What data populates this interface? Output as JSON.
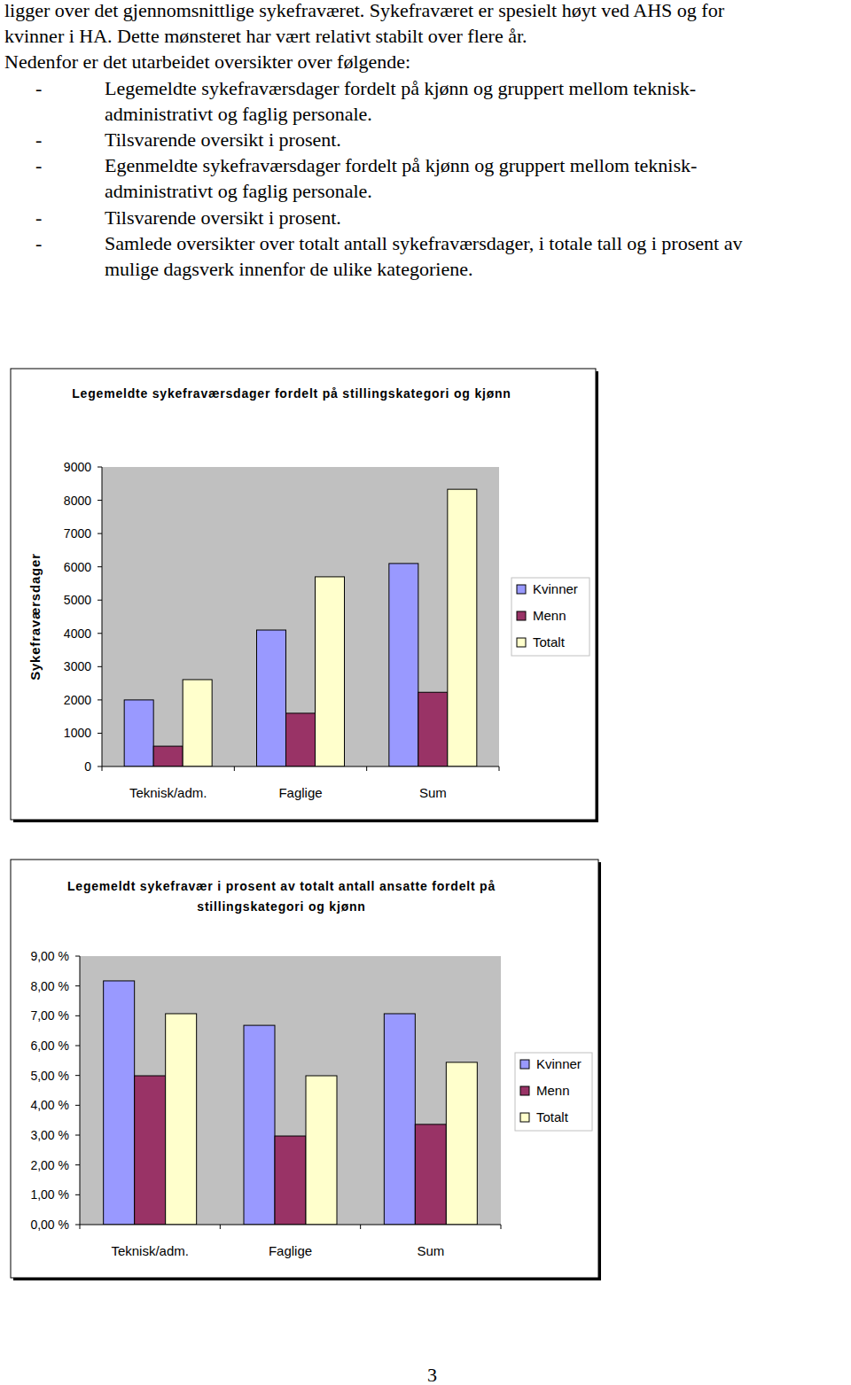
{
  "document": {
    "paragraphs": [
      [
        "ligger over det gjennomsnittlige sykefraværet. Sykefraværet er spesielt høyt ved AHS og for",
        "kvinner i HA. Dette mønsteret har vært relativt stabilt over flere år."
      ],
      [
        "Nedenfor er det utarbeidet oversikter over følgende:"
      ]
    ],
    "list_marker": "-",
    "list": [
      [
        "Legemeldte sykefraværsdager fordelt på kjønn og gruppert mellom teknisk-",
        "administrativt og faglig personale."
      ],
      [
        "Tilsvarende oversikt i prosent."
      ],
      [
        "Egenmeldte sykefraværsdager fordelt på kjønn og gruppert mellom teknisk-",
        "administrativt og faglig personale."
      ],
      [
        "Tilsvarende oversikt i prosent."
      ],
      [
        "Samlede oversikter over totalt antall sykefraværsdager, i totale tall og i prosent av",
        "mulige dagsverk innenfor de ulike kategoriene."
      ]
    ],
    "page_number": "3"
  },
  "chart_data": [
    {
      "type": "bar",
      "title": "Legemeldte sykefraværsdager fordelt på stillingskategori og kjønn",
      "y_label": "Sykefraværsdager",
      "categories": [
        "Teknisk/adm.",
        "Faglige",
        "Sum"
      ],
      "series": [
        {
          "name": "Kvinner",
          "color": "#9999ff",
          "values": [
            2000,
            4100,
            6100
          ]
        },
        {
          "name": "Menn",
          "color": "#993366",
          "values": [
            610,
            1600,
            2230
          ]
        },
        {
          "name": "Totalt",
          "color": "#ffffcc",
          "values": [
            2610,
            5700,
            8330
          ]
        }
      ],
      "ylim": [
        0,
        9000
      ],
      "yticks": [
        0,
        1000,
        2000,
        3000,
        4000,
        5000,
        6000,
        7000,
        8000,
        9000
      ],
      "grid": false,
      "legend": "right"
    },
    {
      "type": "bar",
      "title": "Legemeldt sykefravær i prosent av totalt antall ansatte fordelt på stillingskategori og kjønn",
      "categories": [
        "Teknisk/adm.",
        "Faglige",
        "Sum"
      ],
      "series": [
        {
          "name": "Kvinner",
          "color": "#9999ff",
          "values": [
            8.17,
            6.68,
            7.07
          ]
        },
        {
          "name": "Menn",
          "color": "#993366",
          "values": [
            4.99,
            2.97,
            3.36
          ]
        },
        {
          "name": "Totalt",
          "color": "#ffffcc",
          "values": [
            7.07,
            4.99,
            5.44
          ]
        }
      ],
      "ylim": [
        0,
        9
      ],
      "yticks": [
        {
          "value": 0,
          "label": "0,00 %"
        },
        {
          "value": 1,
          "label": "1,00 %"
        },
        {
          "value": 2,
          "label": "2,00 %"
        },
        {
          "value": 3,
          "label": "3,00 %"
        },
        {
          "value": 4,
          "label": "4,00 %"
        },
        {
          "value": 5,
          "label": "5,00 %"
        },
        {
          "value": 6,
          "label": "6,00 %"
        },
        {
          "value": 7,
          "label": "7,00 %"
        },
        {
          "value": 8,
          "label": "8,00 %"
        },
        {
          "value": 9,
          "label": "9,00 %"
        }
      ],
      "grid": false,
      "legend": "right"
    }
  ]
}
